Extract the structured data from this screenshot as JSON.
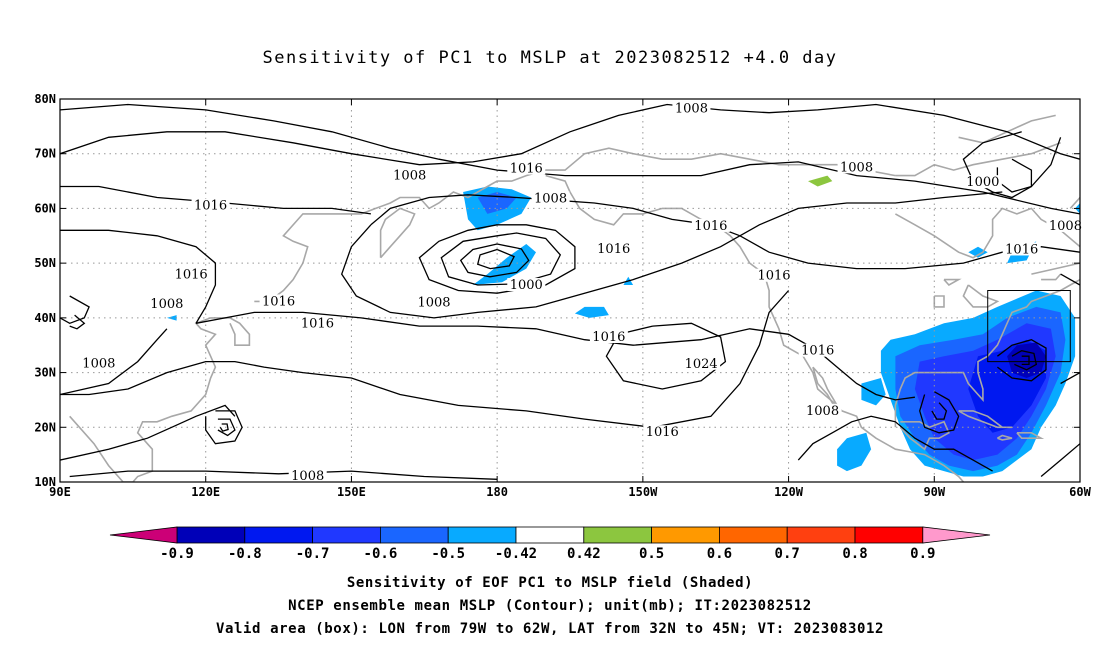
{
  "figure": {
    "title": "Sensitivity of PC1 to MSLP at 2023082512 +4.0 day",
    "captions": [
      "Sensitivity of EOF PC1 to MSLP field (Shaded)",
      "NCEP ensemble mean MSLP (Contour); unit(mb); IT:2023082512",
      "Valid area (box): LON from 79W to 62W, LAT from 32N to 45N; VT: 2023083012"
    ]
  },
  "map": {
    "lon_range": [
      90,
      300
    ],
    "lat_range": [
      10,
      80
    ],
    "lon_ticks": [
      {
        "value": 90,
        "label": "90E"
      },
      {
        "value": 120,
        "label": "120E"
      },
      {
        "value": 150,
        "label": "150E"
      },
      {
        "value": 180,
        "label": "180"
      },
      {
        "value": 210,
        "label": "150W"
      },
      {
        "value": 240,
        "label": "120W"
      },
      {
        "value": 270,
        "label": "90W"
      },
      {
        "value": 300,
        "label": "60W"
      }
    ],
    "lat_ticks": [
      {
        "value": 10,
        "label": "10N"
      },
      {
        "value": 20,
        "label": "20N"
      },
      {
        "value": 30,
        "label": "30N"
      },
      {
        "value": 40,
        "label": "40N"
      },
      {
        "value": 50,
        "label": "50N"
      },
      {
        "value": 60,
        "label": "60N"
      },
      {
        "value": 70,
        "label": "70N"
      },
      {
        "value": 80,
        "label": "80N"
      }
    ],
    "grid": "dotted",
    "valid_box": {
      "lon_min": 281,
      "lon_max": 298,
      "lat_min": 32,
      "lat_max": 45
    },
    "colors": {
      "contour": "#000000",
      "coast": "#a8a8a8",
      "grid": "#999999"
    }
  },
  "contour_labels": [
    {
      "text": "1008",
      "lon": 220,
      "lat": 78.3
    },
    {
      "text": "1016",
      "lon": 186,
      "lat": 67.3
    },
    {
      "text": "1008",
      "lon": 162,
      "lat": 66.0
    },
    {
      "text": "1008",
      "lon": 254,
      "lat": 67.5
    },
    {
      "text": "1000",
      "lon": 280,
      "lat": 64.8
    },
    {
      "text": "1016",
      "lon": 121,
      "lat": 60.5
    },
    {
      "text": "1008",
      "lon": 191,
      "lat": 61.8
    },
    {
      "text": "1016",
      "lon": 224,
      "lat": 56.8
    },
    {
      "text": "1008",
      "lon": 297,
      "lat": 56.8
    },
    {
      "text": "1016",
      "lon": 204,
      "lat": 52.6
    },
    {
      "text": "1016",
      "lon": 288,
      "lat": 52.5
    },
    {
      "text": "1016",
      "lon": 117,
      "lat": 47.9
    },
    {
      "text": "1016",
      "lon": 237,
      "lat": 47.7
    },
    {
      "text": "1000",
      "lon": 186,
      "lat": 46.0
    },
    {
      "text": "1008",
      "lon": 112,
      "lat": 42.5
    },
    {
      "text": "1016",
      "lon": 135,
      "lat": 43.0
    },
    {
      "text": "1008",
      "lon": 167,
      "lat": 42.8
    },
    {
      "text": "1016",
      "lon": 143,
      "lat": 39.0
    },
    {
      "text": "1016",
      "lon": 203,
      "lat": 36.5
    },
    {
      "text": "1016",
      "lon": 246,
      "lat": 34.0
    },
    {
      "text": "1008",
      "lon": 98,
      "lat": 31.7
    },
    {
      "text": "1024",
      "lon": 222,
      "lat": 31.6
    },
    {
      "text": "1008",
      "lon": 247,
      "lat": 23.0
    },
    {
      "text": "1016",
      "lon": 214,
      "lat": 19.1
    },
    {
      "text": "1008",
      "lon": 141,
      "lat": 11.1
    }
  ],
  "colorbar": {
    "levels": [
      "-0.9",
      "-0.8",
      "-0.7",
      "-0.6",
      "-0.5",
      "-0.42",
      "0.42",
      "0.5",
      "0.6",
      "0.7",
      "0.8",
      "0.9"
    ],
    "colors": [
      "#0000b8",
      "#0018f0",
      "#2038ff",
      "#1a66ff",
      "#08aaff",
      "#ffffff",
      "#8cc63f",
      "#ff9900",
      "#ff6600",
      "#ff4010",
      "#ff0000"
    ],
    "end_colors": {
      "low": "#cc0077",
      "high": "#ff99cc"
    }
  }
}
